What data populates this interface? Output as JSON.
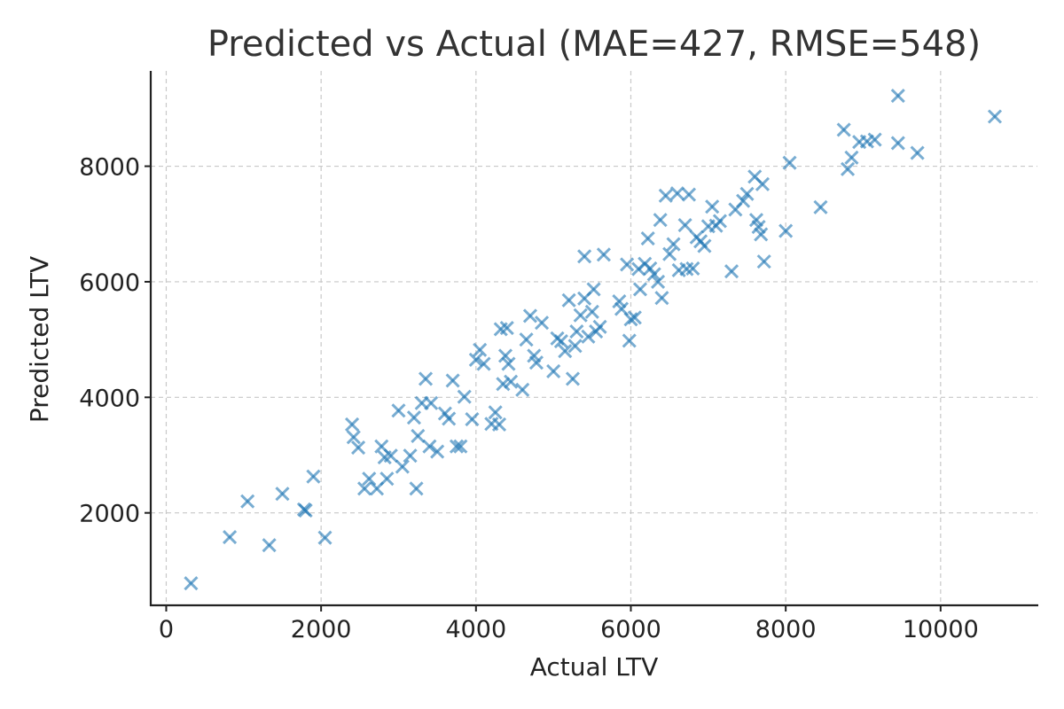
{
  "chart_data": {
    "type": "scatter",
    "title": "Predicted vs Actual (MAE=427, RMSE=548)",
    "xlabel": "Actual LTV",
    "ylabel": "Predicted LTV",
    "xlim": [
      -200,
      11250
    ],
    "ylim": [
      400,
      9650
    ],
    "xticks": [
      0,
      2000,
      4000,
      6000,
      8000,
      10000
    ],
    "yticks": [
      2000,
      4000,
      6000,
      8000
    ],
    "grid": true,
    "marker": "x",
    "color": "#1f77b4",
    "alpha": 0.6,
    "points": [
      [
        320,
        780
      ],
      [
        820,
        1580
      ],
      [
        1050,
        2200
      ],
      [
        1330,
        1440
      ],
      [
        1500,
        2330
      ],
      [
        1780,
        2060
      ],
      [
        1800,
        2040
      ],
      [
        1900,
        2630
      ],
      [
        2050,
        1570
      ],
      [
        2400,
        3530
      ],
      [
        2420,
        3310
      ],
      [
        2480,
        3130
      ],
      [
        2560,
        2420
      ],
      [
        2620,
        2590
      ],
      [
        2720,
        2420
      ],
      [
        2780,
        3150
      ],
      [
        2820,
        2960
      ],
      [
        2850,
        2590
      ],
      [
        2900,
        2990
      ],
      [
        3000,
        3770
      ],
      [
        3050,
        2800
      ],
      [
        3150,
        2990
      ],
      [
        3200,
        3650
      ],
      [
        3230,
        2420
      ],
      [
        3250,
        3330
      ],
      [
        3300,
        3900
      ],
      [
        3350,
        4320
      ],
      [
        3400,
        3150
      ],
      [
        3420,
        3900
      ],
      [
        3500,
        3060
      ],
      [
        3600,
        3720
      ],
      [
        3650,
        3630
      ],
      [
        3700,
        4290
      ],
      [
        3750,
        3150
      ],
      [
        3800,
        3150
      ],
      [
        3850,
        4010
      ],
      [
        3950,
        3620
      ],
      [
        4000,
        4650
      ],
      [
        4050,
        4820
      ],
      [
        4100,
        4580
      ],
      [
        4200,
        3540
      ],
      [
        4250,
        3740
      ],
      [
        4300,
        3530
      ],
      [
        4320,
        5180
      ],
      [
        4350,
        4230
      ],
      [
        4380,
        4720
      ],
      [
        4400,
        5200
      ],
      [
        4420,
        4580
      ],
      [
        4450,
        4270
      ],
      [
        4600,
        4130
      ],
      [
        4650,
        5000
      ],
      [
        4700,
        5410
      ],
      [
        4750,
        4720
      ],
      [
        4780,
        4600
      ],
      [
        4850,
        5290
      ],
      [
        5000,
        4450
      ],
      [
        5050,
        5020
      ],
      [
        5100,
        4970
      ],
      [
        5150,
        4800
      ],
      [
        5200,
        5680
      ],
      [
        5250,
        4320
      ],
      [
        5280,
        4890
      ],
      [
        5300,
        5140
      ],
      [
        5350,
        5420
      ],
      [
        5400,
        5710
      ],
      [
        5450,
        5050
      ],
      [
        5500,
        5480
      ],
      [
        5520,
        5870
      ],
      [
        5550,
        5140
      ],
      [
        5600,
        5220
      ],
      [
        5650,
        6470
      ],
      [
        5400,
        6440
      ],
      [
        5850,
        5660
      ],
      [
        5880,
        5530
      ],
      [
        5950,
        6300
      ],
      [
        5980,
        4980
      ],
      [
        6000,
        5350
      ],
      [
        6050,
        5380
      ],
      [
        6100,
        6220
      ],
      [
        6120,
        5870
      ],
      [
        6180,
        6310
      ],
      [
        6220,
        6750
      ],
      [
        6250,
        6230
      ],
      [
        6300,
        6130
      ],
      [
        6350,
        6000
      ],
      [
        6380,
        7070
      ],
      [
        6400,
        5720
      ],
      [
        6450,
        7490
      ],
      [
        6500,
        6480
      ],
      [
        6550,
        6650
      ],
      [
        6600,
        7530
      ],
      [
        6620,
        6200
      ],
      [
        6700,
        6980
      ],
      [
        6720,
        6220
      ],
      [
        6750,
        7510
      ],
      [
        6800,
        6230
      ],
      [
        6850,
        6770
      ],
      [
        6900,
        6700
      ],
      [
        6950,
        6620
      ],
      [
        7000,
        6960
      ],
      [
        7050,
        7300
      ],
      [
        7100,
        6970
      ],
      [
        7150,
        7050
      ],
      [
        7300,
        6180
      ],
      [
        7350,
        7250
      ],
      [
        7450,
        7400
      ],
      [
        7500,
        7520
      ],
      [
        7600,
        7820
      ],
      [
        7620,
        7070
      ],
      [
        7650,
        6950
      ],
      [
        7680,
        6820
      ],
      [
        7700,
        7690
      ],
      [
        7720,
        6350
      ],
      [
        8000,
        6880
      ],
      [
        8050,
        8060
      ],
      [
        8450,
        7290
      ],
      [
        8750,
        8630
      ],
      [
        8800,
        7950
      ],
      [
        8850,
        8150
      ],
      [
        8950,
        8420
      ],
      [
        9050,
        8430
      ],
      [
        9150,
        8460
      ],
      [
        9450,
        8400
      ],
      [
        9450,
        9220
      ],
      [
        9700,
        8230
      ],
      [
        10700,
        8860
      ]
    ]
  }
}
